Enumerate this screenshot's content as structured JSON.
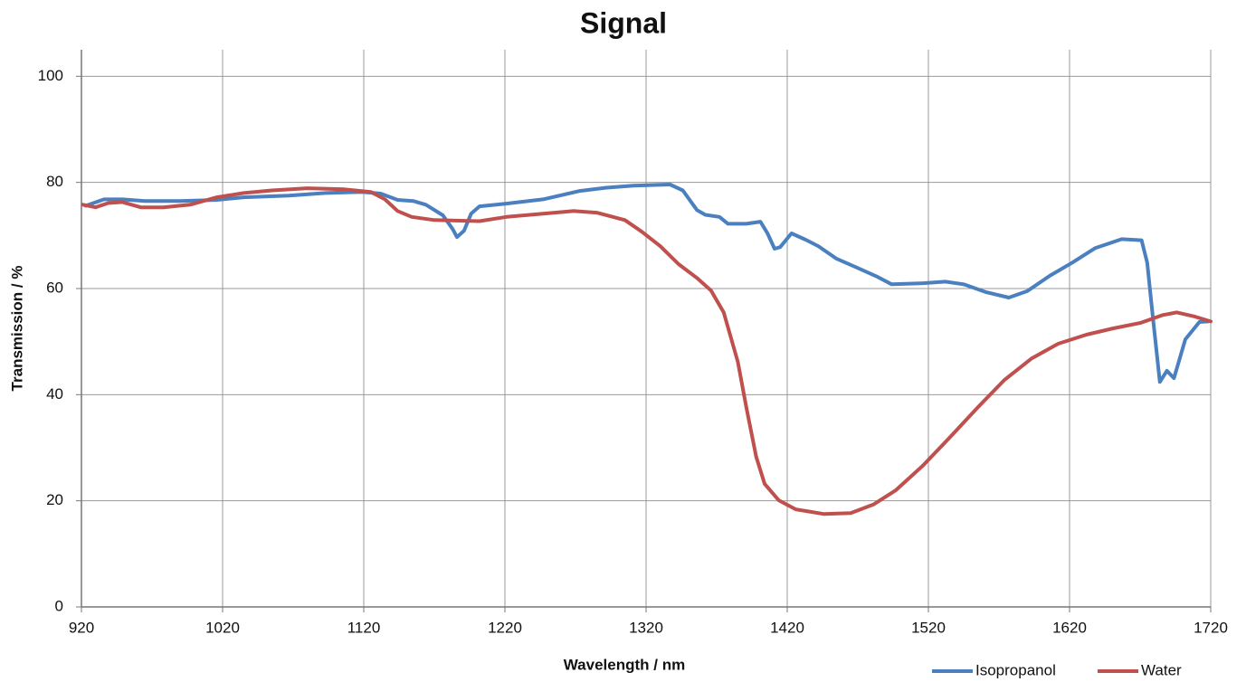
{
  "chart_data": {
    "type": "line",
    "title": "Signal",
    "x_label": "Wavelength / nm",
    "y_label": "Transmission / %",
    "xlim": [
      920,
      1720
    ],
    "xticks": [
      920,
      1020,
      1120,
      1220,
      1320,
      1420,
      1520,
      1620,
      1720
    ],
    "ylim": [
      0,
      105
    ],
    "yticks": [
      0,
      20,
      40,
      60,
      80,
      100
    ],
    "grid": true,
    "legend": "bottom-right",
    "series": [
      {
        "name": "Isopropanol",
        "color": "#4a7fc0",
        "x": [
          923,
          936,
          949,
          965,
          990,
          1016,
          1035,
          1067,
          1093,
          1119,
          1132,
          1144,
          1155,
          1164,
          1176,
          1183,
          1186,
          1191,
          1196,
          1202,
          1221,
          1247,
          1273,
          1292,
          1311,
          1337,
          1346,
          1356,
          1362,
          1372,
          1378,
          1391,
          1401,
          1406,
          1411,
          1415,
          1423,
          1433,
          1442,
          1455,
          1468,
          1484,
          1494,
          1516,
          1532,
          1545,
          1561,
          1577,
          1590,
          1606,
          1622,
          1638,
          1657,
          1671,
          1675,
          1679,
          1684,
          1689,
          1694,
          1702,
          1712,
          1718
        ],
        "values": [
          75.6,
          76.8,
          76.8,
          76.5,
          76.5,
          76.7,
          77.2,
          77.5,
          78,
          78.2,
          77.9,
          76.7,
          76.5,
          75.8,
          73.8,
          71.2,
          69.7,
          70.9,
          74.1,
          75.5,
          76,
          76.8,
          78.4,
          79,
          79.4,
          79.6,
          78.5,
          74.8,
          73.9,
          73.5,
          72.2,
          72.2,
          72.6,
          70.4,
          67.5,
          67.8,
          70.4,
          69.2,
          68,
          65.6,
          64.1,
          62.2,
          60.8,
          61,
          61.3,
          60.8,
          59.3,
          58.3,
          59.5,
          62.4,
          64.9,
          67.6,
          69.3,
          69.1,
          64.9,
          54.7,
          42.4,
          44.5,
          43.1,
          50.4,
          53.7,
          53.8
        ]
      },
      {
        "name": "Water",
        "color": "#c0504d",
        "x": [
          921,
          930,
          939,
          949,
          962,
          978,
          997,
          1016,
          1035,
          1055,
          1080,
          1106,
          1125,
          1135,
          1144,
          1154,
          1170,
          1202,
          1221,
          1247,
          1269,
          1285,
          1305,
          1317,
          1330,
          1343,
          1356,
          1366,
          1375,
          1385,
          1391,
          1398,
          1404,
          1414,
          1426,
          1446,
          1465,
          1481,
          1497,
          1516,
          1535,
          1555,
          1574,
          1593,
          1612,
          1632,
          1651,
          1670,
          1686,
          1696,
          1709,
          1720
        ],
        "values": [
          75.8,
          75.3,
          76.1,
          76.3,
          75.3,
          75.3,
          75.8,
          77.2,
          78,
          78.5,
          78.9,
          78.7,
          78.2,
          76.8,
          74.6,
          73.5,
          72.9,
          72.7,
          73.5,
          74.1,
          74.6,
          74.3,
          72.9,
          70.7,
          68,
          64.6,
          62,
          59.6,
          55.5,
          46.2,
          37.6,
          28.3,
          23.2,
          20.1,
          18.4,
          17.5,
          17.7,
          19.3,
          22,
          26.6,
          31.9,
          37.6,
          42.8,
          46.8,
          49.6,
          51.3,
          52.5,
          53.5,
          55,
          55.5,
          54.7,
          53.8
        ]
      }
    ]
  }
}
